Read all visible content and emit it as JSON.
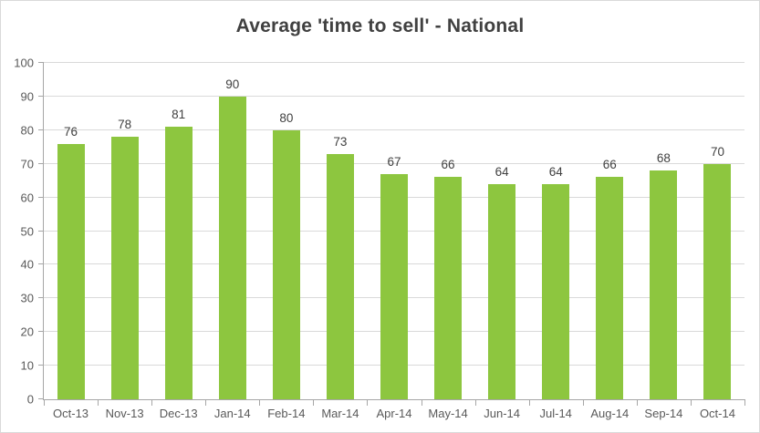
{
  "chart_data": {
    "type": "bar",
    "title": "Average 'time to sell' - National",
    "categories": [
      "Oct-13",
      "Nov-13",
      "Dec-13",
      "Jan-14",
      "Feb-14",
      "Mar-14",
      "Apr-14",
      "May-14",
      "Jun-14",
      "Jul-14",
      "Aug-14",
      "Sep-14",
      "Oct-14"
    ],
    "values": [
      76,
      78,
      81,
      90,
      80,
      73,
      67,
      66,
      64,
      64,
      66,
      68,
      70
    ],
    "xlabel": "",
    "ylabel": "",
    "ylim": [
      0,
      100
    ],
    "ytick_step": 10,
    "grid": true,
    "legend": false,
    "data_labels": true,
    "colors": {
      "bar": "#8dc63f",
      "value_label": "#404040",
      "axis_text": "#595959",
      "gridline": "#d9d9d9",
      "axis_line": "#a6a6a6",
      "title": "#404040"
    }
  }
}
